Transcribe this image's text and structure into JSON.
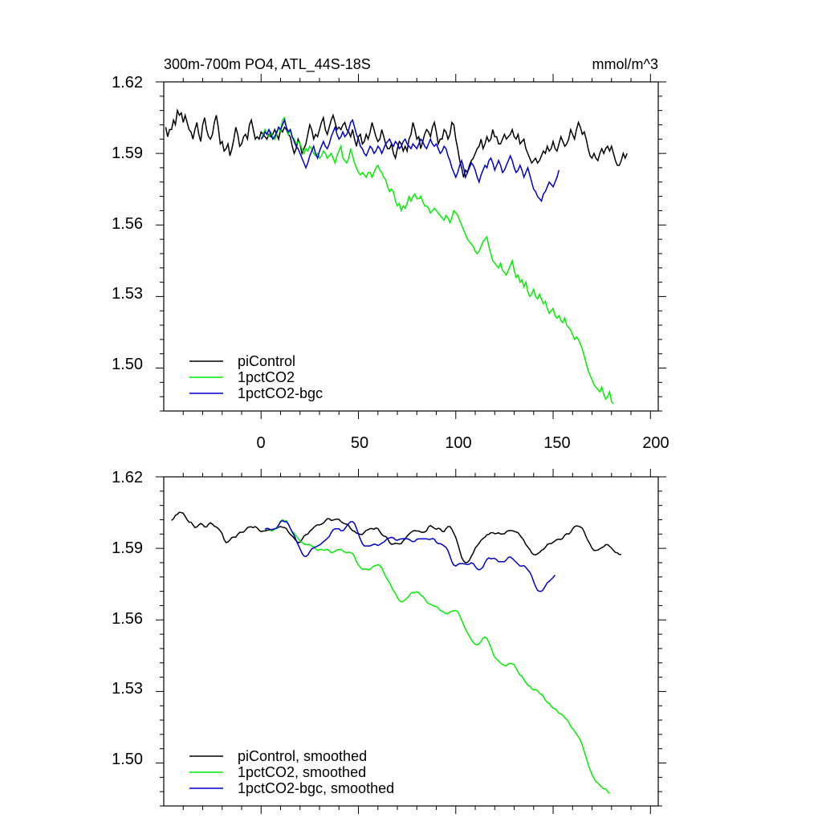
{
  "colors": {
    "picontrol": "#000000",
    "onepct": "#00ee00",
    "bgc": "#0000cc",
    "frame": "#000000"
  },
  "chart_data": [
    {
      "type": "line",
      "title": "300m-700m PO4, ATL_44S-18S",
      "units": "mmol/m^3",
      "xlim": [
        -50,
        204
      ],
      "ylim": [
        1.482,
        1.62
      ],
      "yticks": [
        "1.50",
        "1.53",
        "1.56",
        "1.59",
        "1.62"
      ],
      "xticks": [
        "0",
        "50",
        "100",
        "150",
        "200"
      ],
      "legend_position": "bottom-left",
      "series": [
        {
          "name": "piControl",
          "color_key": "picontrol",
          "x_start": -49,
          "x_step": 1,
          "values": [
            1.601,
            1.597,
            1.6,
            1.6,
            1.604,
            1.602,
            1.608,
            1.606,
            1.607,
            1.603,
            1.606,
            1.603,
            1.6,
            1.599,
            1.596,
            1.6,
            1.603,
            1.598,
            1.595,
            1.602,
            1.605,
            1.6,
            1.597,
            1.596,
            1.598,
            1.603,
            1.606,
            1.601,
            1.594,
            1.595,
            1.591,
            1.592,
            1.594,
            1.589,
            1.592,
            1.596,
            1.601,
            1.598,
            1.593,
            1.594,
            1.597,
            1.598,
            1.596,
            1.602,
            1.604,
            1.6,
            1.596,
            1.597,
            1.596,
            1.599,
            1.598,
            1.597,
            1.596,
            1.598,
            1.597,
            1.598,
            1.6,
            1.598,
            1.596,
            1.6,
            1.599,
            1.601,
            1.6,
            1.598,
            1.597,
            1.593,
            1.59,
            1.592,
            1.596,
            1.594,
            1.59,
            1.592,
            1.594,
            1.598,
            1.602,
            1.6,
            1.596,
            1.598,
            1.597,
            1.6,
            1.603,
            1.605,
            1.6,
            1.598,
            1.601,
            1.604,
            1.606,
            1.603,
            1.6,
            1.601,
            1.6,
            1.602,
            1.603,
            1.6,
            1.599,
            1.597,
            1.6,
            1.596,
            1.593,
            1.597,
            1.598,
            1.594,
            1.595,
            1.598,
            1.596,
            1.599,
            1.603,
            1.6,
            1.597,
            1.595,
            1.596,
            1.6,
            1.597,
            1.594,
            1.592,
            1.592,
            1.594,
            1.59,
            1.588,
            1.592,
            1.595,
            1.594,
            1.591,
            1.593,
            1.591,
            1.596,
            1.598,
            1.603,
            1.6,
            1.596,
            1.597,
            1.592,
            1.595,
            1.598,
            1.6,
            1.599,
            1.597,
            1.601,
            1.603,
            1.599,
            1.594,
            1.596,
            1.596,
            1.6,
            1.599,
            1.596,
            1.598,
            1.603,
            1.602,
            1.596,
            1.592,
            1.587,
            1.584,
            1.58,
            1.583,
            1.582,
            1.585,
            1.587,
            1.588,
            1.59,
            1.592,
            1.593,
            1.596,
            1.592,
            1.594,
            1.597,
            1.595,
            1.596,
            1.6,
            1.597,
            1.597,
            1.594,
            1.594,
            1.596,
            1.598,
            1.596,
            1.597,
            1.598,
            1.6,
            1.597,
            1.596,
            1.598,
            1.594,
            1.595,
            1.596,
            1.592,
            1.59,
            1.588,
            1.586,
            1.587,
            1.588,
            1.586,
            1.587,
            1.589,
            1.591,
            1.59,
            1.593,
            1.591,
            1.592,
            1.595,
            1.592,
            1.591,
            1.594,
            1.597,
            1.595,
            1.593,
            1.594,
            1.596,
            1.6,
            1.598,
            1.596,
            1.6,
            1.603,
            1.601,
            1.598,
            1.599,
            1.596,
            1.592,
            1.589,
            1.588,
            1.59,
            1.588,
            1.587,
            1.59,
            1.592,
            1.59,
            1.592,
            1.593,
            1.591,
            1.593,
            1.59,
            1.587,
            1.585,
            1.585,
            1.587,
            1.59,
            1.588,
            1.59
          ]
        },
        {
          "name": "1pctCO2",
          "color_key": "onepct",
          "x_start": 0,
          "x_step": 1,
          "values": [
            1.596,
            1.598,
            1.6,
            1.598,
            1.597,
            1.599,
            1.597,
            1.596,
            1.598,
            1.601,
            1.599,
            1.604,
            1.605,
            1.601,
            1.598,
            1.6,
            1.597,
            1.596,
            1.594,
            1.595,
            1.594,
            1.592,
            1.59,
            1.592,
            1.591,
            1.593,
            1.592,
            1.59,
            1.589,
            1.59,
            1.588,
            1.589,
            1.591,
            1.59,
            1.588,
            1.589,
            1.59,
            1.588,
            1.586,
            1.589,
            1.591,
            1.593,
            1.588,
            1.587,
            1.586,
            1.588,
            1.592,
            1.589,
            1.586,
            1.584,
            1.582,
            1.581,
            1.582,
            1.581,
            1.58,
            1.582,
            1.582,
            1.58,
            1.582,
            1.584,
            1.585,
            1.583,
            1.582,
            1.58,
            1.579,
            1.576,
            1.574,
            1.575,
            1.574,
            1.57,
            1.568,
            1.569,
            1.566,
            1.568,
            1.567,
            1.569,
            1.572,
            1.57,
            1.572,
            1.573,
            1.571,
            1.571,
            1.572,
            1.57,
            1.568,
            1.568,
            1.567,
            1.565,
            1.566,
            1.567,
            1.566,
            1.565,
            1.564,
            1.563,
            1.562,
            1.564,
            1.563,
            1.561,
            1.563,
            1.566,
            1.565,
            1.564,
            1.562,
            1.56,
            1.558,
            1.556,
            1.554,
            1.553,
            1.552,
            1.551,
            1.549,
            1.548,
            1.549,
            1.551,
            1.553,
            1.554,
            1.555,
            1.551,
            1.548,
            1.545,
            1.544,
            1.543,
            1.542,
            1.544,
            1.541,
            1.54,
            1.539,
            1.541,
            1.543,
            1.545,
            1.541,
            1.538,
            1.539,
            1.536,
            1.537,
            1.534,
            1.536,
            1.532,
            1.53,
            1.531,
            1.533,
            1.53,
            1.529,
            1.531,
            1.529,
            1.527,
            1.528,
            1.525,
            1.523,
            1.524,
            1.525,
            1.522,
            1.521,
            1.522,
            1.52,
            1.519,
            1.521,
            1.518,
            1.517,
            1.516,
            1.514,
            1.512,
            1.513,
            1.512,
            1.51,
            1.508,
            1.505,
            1.502,
            1.499,
            1.497,
            1.495,
            1.493,
            1.492,
            1.491,
            1.49,
            1.492,
            1.489,
            1.487,
            1.488,
            1.49,
            1.486,
            1.485
          ]
        },
        {
          "name": "1pctCO2-bgc",
          "color_key": "bgc",
          "x_start": 0,
          "x_step": 1,
          "values": [
            1.596,
            1.597,
            1.599,
            1.598,
            1.6,
            1.598,
            1.596,
            1.597,
            1.599,
            1.601,
            1.6,
            1.602,
            1.604,
            1.601,
            1.599,
            1.6,
            1.597,
            1.595,
            1.593,
            1.592,
            1.59,
            1.588,
            1.586,
            1.584,
            1.586,
            1.589,
            1.591,
            1.593,
            1.59,
            1.588,
            1.591,
            1.593,
            1.595,
            1.593,
            1.592,
            1.594,
            1.597,
            1.599,
            1.601,
            1.598,
            1.596,
            1.597,
            1.599,
            1.597,
            1.598,
            1.6,
            1.603,
            1.604,
            1.601,
            1.598,
            1.596,
            1.593,
            1.592,
            1.59,
            1.589,
            1.591,
            1.593,
            1.592,
            1.59,
            1.591,
            1.593,
            1.592,
            1.59,
            1.592,
            1.594,
            1.595,
            1.596,
            1.594,
            1.593,
            1.595,
            1.594,
            1.592,
            1.593,
            1.595,
            1.596,
            1.594,
            1.593,
            1.592,
            1.594,
            1.593,
            1.592,
            1.594,
            1.596,
            1.595,
            1.593,
            1.592,
            1.594,
            1.596,
            1.594,
            1.593,
            1.594,
            1.592,
            1.59,
            1.591,
            1.593,
            1.592,
            1.589,
            1.587,
            1.584,
            1.582,
            1.58,
            1.582,
            1.585,
            1.587,
            1.584,
            1.58,
            1.582,
            1.584,
            1.586,
            1.585,
            1.583,
            1.58,
            1.578,
            1.581,
            1.583,
            1.585,
            1.584,
            1.587,
            1.588,
            1.586,
            1.583,
            1.585,
            1.587,
            1.585,
            1.582,
            1.583,
            1.585,
            1.587,
            1.589,
            1.587,
            1.584,
            1.582,
            1.583,
            1.585,
            1.583,
            1.58,
            1.582,
            1.584,
            1.581,
            1.578,
            1.575,
            1.574,
            1.572,
            1.571,
            1.57,
            1.573,
            1.574,
            1.576,
            1.578,
            1.577,
            1.576,
            1.578,
            1.58,
            1.583
          ]
        }
      ]
    },
    {
      "type": "line",
      "title": "",
      "xlim": [
        -50,
        204
      ],
      "ylim": [
        1.482,
        1.62
      ],
      "yticks": [
        "1.50",
        "1.53",
        "1.56",
        "1.59",
        "1.62"
      ],
      "legend_position": "bottom-left",
      "series": [
        {
          "name": "piControl, smoothed",
          "color_key": "picontrol",
          "smooth_of": 0,
          "window": 7,
          "x_start": -46
        },
        {
          "name": "1pctCO2, smoothed",
          "color_key": "onepct",
          "smooth_of": 1,
          "window": 5,
          "x_start": 2
        },
        {
          "name": "1pctCO2-bgc, smoothed",
          "color_key": "bgc",
          "smooth_of": 2,
          "window": 5,
          "x_start": 2
        }
      ]
    }
  ]
}
